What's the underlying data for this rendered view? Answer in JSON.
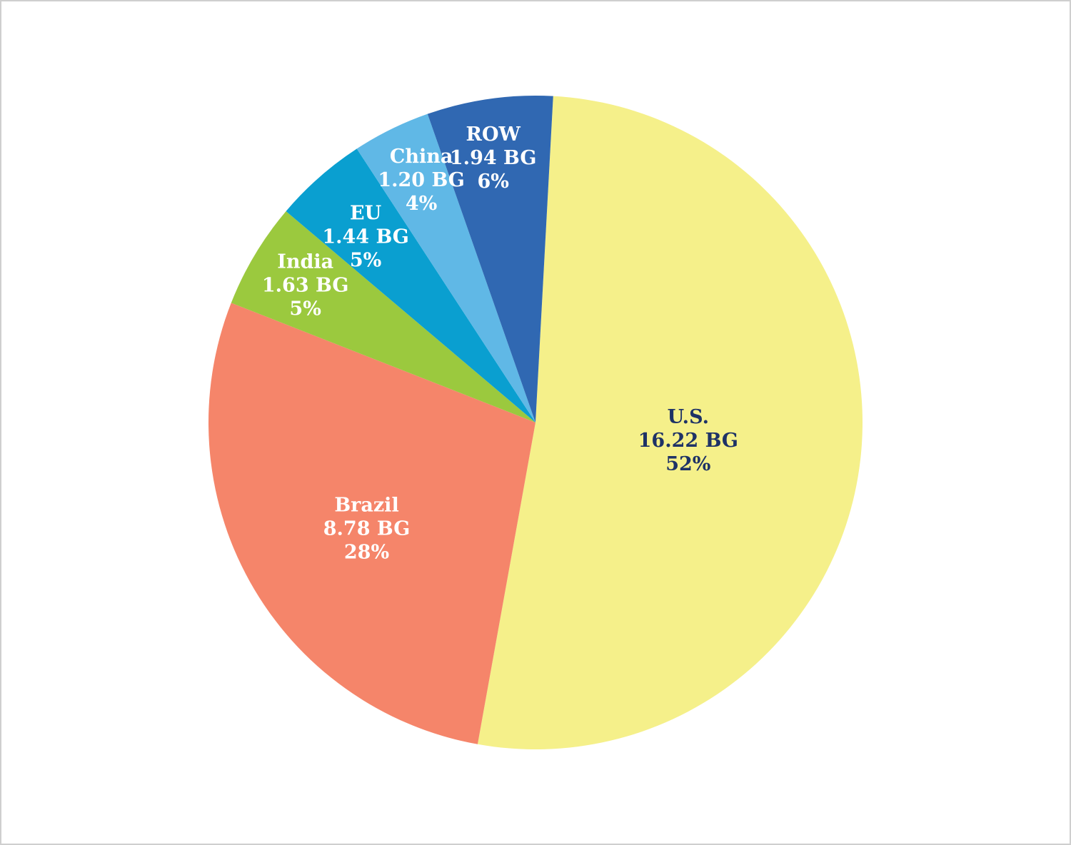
{
  "chart_data": {
    "type": "pie",
    "title": "",
    "start_angle_deg": 3.1,
    "direction": "clockwise",
    "slices": [
      {
        "category": "U.S.",
        "value": 16.22,
        "value_label": "16.22 BG",
        "percent_label": "52%",
        "color": "#f5f08a",
        "text_color": "#1e3266"
      },
      {
        "category": "Brazil",
        "value": 8.78,
        "value_label": "8.78 BG",
        "percent_label": "28%",
        "color": "#f5856a",
        "text_color": "#ffffff"
      },
      {
        "category": "India",
        "value": 1.63,
        "value_label": "1.63 BG",
        "percent_label": "5%",
        "color": "#9bc93e",
        "text_color": "#ffffff"
      },
      {
        "category": "EU",
        "value": 1.44,
        "value_label": "1.44 BG",
        "percent_label": "5%",
        "color": "#0a9fd0",
        "text_color": "#ffffff"
      },
      {
        "category": "China",
        "value": 1.2,
        "value_label": "1.20 BG",
        "percent_label": "4%",
        "color": "#60b8e6",
        "text_color": "#ffffff"
      },
      {
        "category": "ROW",
        "value": 1.94,
        "value_label": "1.94 BG",
        "percent_label": "6%",
        "color": "#3068b2",
        "text_color": "#ffffff"
      }
    ]
  }
}
